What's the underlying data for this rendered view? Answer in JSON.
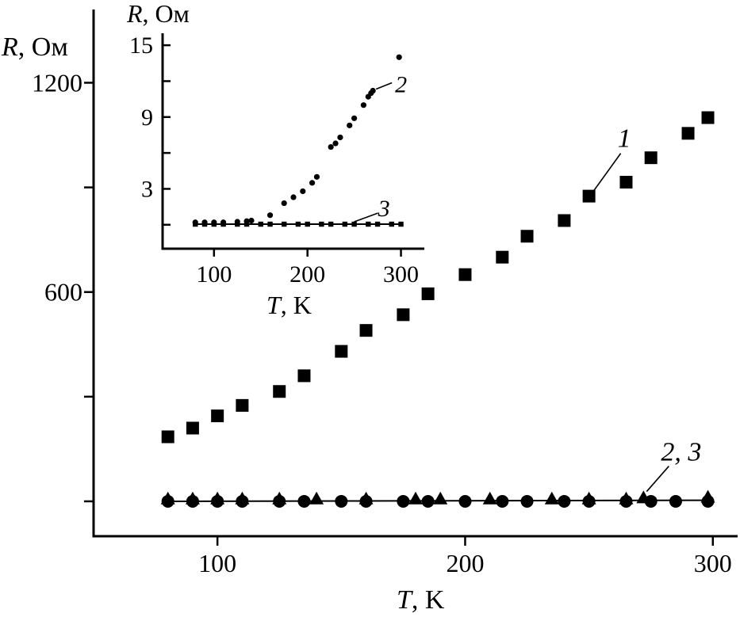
{
  "chart_data": [
    {
      "type": "scatter",
      "panel": "main",
      "x_label_var": "T",
      "x_label_unit": ", K",
      "y_label_var": "R",
      "y_label_unit": ", Ом",
      "xlim": [
        50,
        310
      ],
      "ylim": [
        -100,
        1410
      ],
      "x_ticks": [
        100,
        200,
        300
      ],
      "x_tick_labels": [
        "100",
        "200",
        "300"
      ],
      "y_ticks": [
        0,
        300,
        600,
        900,
        1200
      ],
      "y_tick_labels": [
        "",
        "",
        "600",
        "",
        "1200"
      ],
      "series": [
        {
          "name": "1",
          "marker": "square",
          "x": [
            80,
            90,
            100,
            110,
            125,
            135,
            150,
            160,
            175,
            185,
            200,
            215,
            225,
            240,
            250,
            265,
            275,
            290,
            298
          ],
          "y": [
            185,
            210,
            245,
            275,
            315,
            360,
            430,
            490,
            535,
            595,
            650,
            700,
            760,
            805,
            875,
            915,
            985,
            1055,
            1100
          ]
        },
        {
          "name": "2",
          "marker": "circle",
          "x": [
            80,
            90,
            100,
            110,
            125,
            135,
            150,
            160,
            175,
            185,
            200,
            215,
            225,
            240,
            250,
            265,
            275,
            285,
            298
          ],
          "y": [
            0,
            0,
            0,
            0,
            0,
            0,
            0,
            0,
            0,
            0,
            0,
            0,
            0,
            0,
            0,
            0,
            0,
            0,
            0
          ]
        },
        {
          "name": "3",
          "marker": "triangle",
          "x": [
            80,
            90,
            100,
            110,
            125,
            140,
            160,
            180,
            190,
            210,
            235,
            250,
            265,
            272,
            298
          ],
          "y": [
            5,
            5,
            5,
            5,
            5,
            5,
            5,
            5,
            5,
            5,
            5,
            5,
            5,
            8,
            10
          ]
        }
      ],
      "annotations": [
        {
          "text": "1",
          "x": 250,
          "y": 875
        },
        {
          "text": "2, 3",
          "x": 272,
          "y": 10
        }
      ]
    },
    {
      "type": "scatter",
      "panel": "inset",
      "x_label_var": "T",
      "x_label_unit": ", K",
      "y_label_var": "R",
      "y_label_unit": ", Ом",
      "xlim": [
        45,
        325
      ],
      "ylim": [
        -2,
        16
      ],
      "x_ticks": [
        100,
        200,
        300
      ],
      "x_tick_labels": [
        "100",
        "200",
        "300"
      ],
      "y_ticks": [
        0,
        3,
        6,
        9,
        12,
        15
      ],
      "y_tick_labels": [
        "",
        "3",
        "",
        "9",
        "",
        "15"
      ],
      "series": [
        {
          "name": "2",
          "marker": "circle-small",
          "x": [
            80,
            90,
            100,
            110,
            125,
            135,
            140,
            160,
            175,
            185,
            195,
            205,
            210,
            225,
            230,
            235,
            245,
            250,
            260,
            265,
            268,
            270,
            298
          ],
          "y": [
            0.2,
            0.2,
            0.2,
            0.2,
            0.25,
            0.3,
            0.35,
            0.8,
            1.8,
            2.3,
            2.8,
            3.5,
            4.0,
            6.5,
            6.8,
            7.3,
            8.3,
            8.9,
            10.0,
            10.7,
            11.0,
            11.2,
            14.0
          ]
        },
        {
          "name": "3",
          "marker": "square-small",
          "x": [
            80,
            90,
            100,
            110,
            125,
            135,
            150,
            160,
            175,
            190,
            200,
            215,
            225,
            240,
            250,
            265,
            275,
            290,
            300
          ],
          "y": [
            0.05,
            0.05,
            0.05,
            0.05,
            0.05,
            0.05,
            0.05,
            0.05,
            0.05,
            0.05,
            0.05,
            0.05,
            0.05,
            0.05,
            0.05,
            0.05,
            0.05,
            0.05,
            0.05
          ]
        }
      ],
      "annotations": [
        {
          "text": "2",
          "x": 270,
          "y": 11.2
        },
        {
          "text": "3",
          "x": 250,
          "y": 0.05
        }
      ]
    }
  ]
}
